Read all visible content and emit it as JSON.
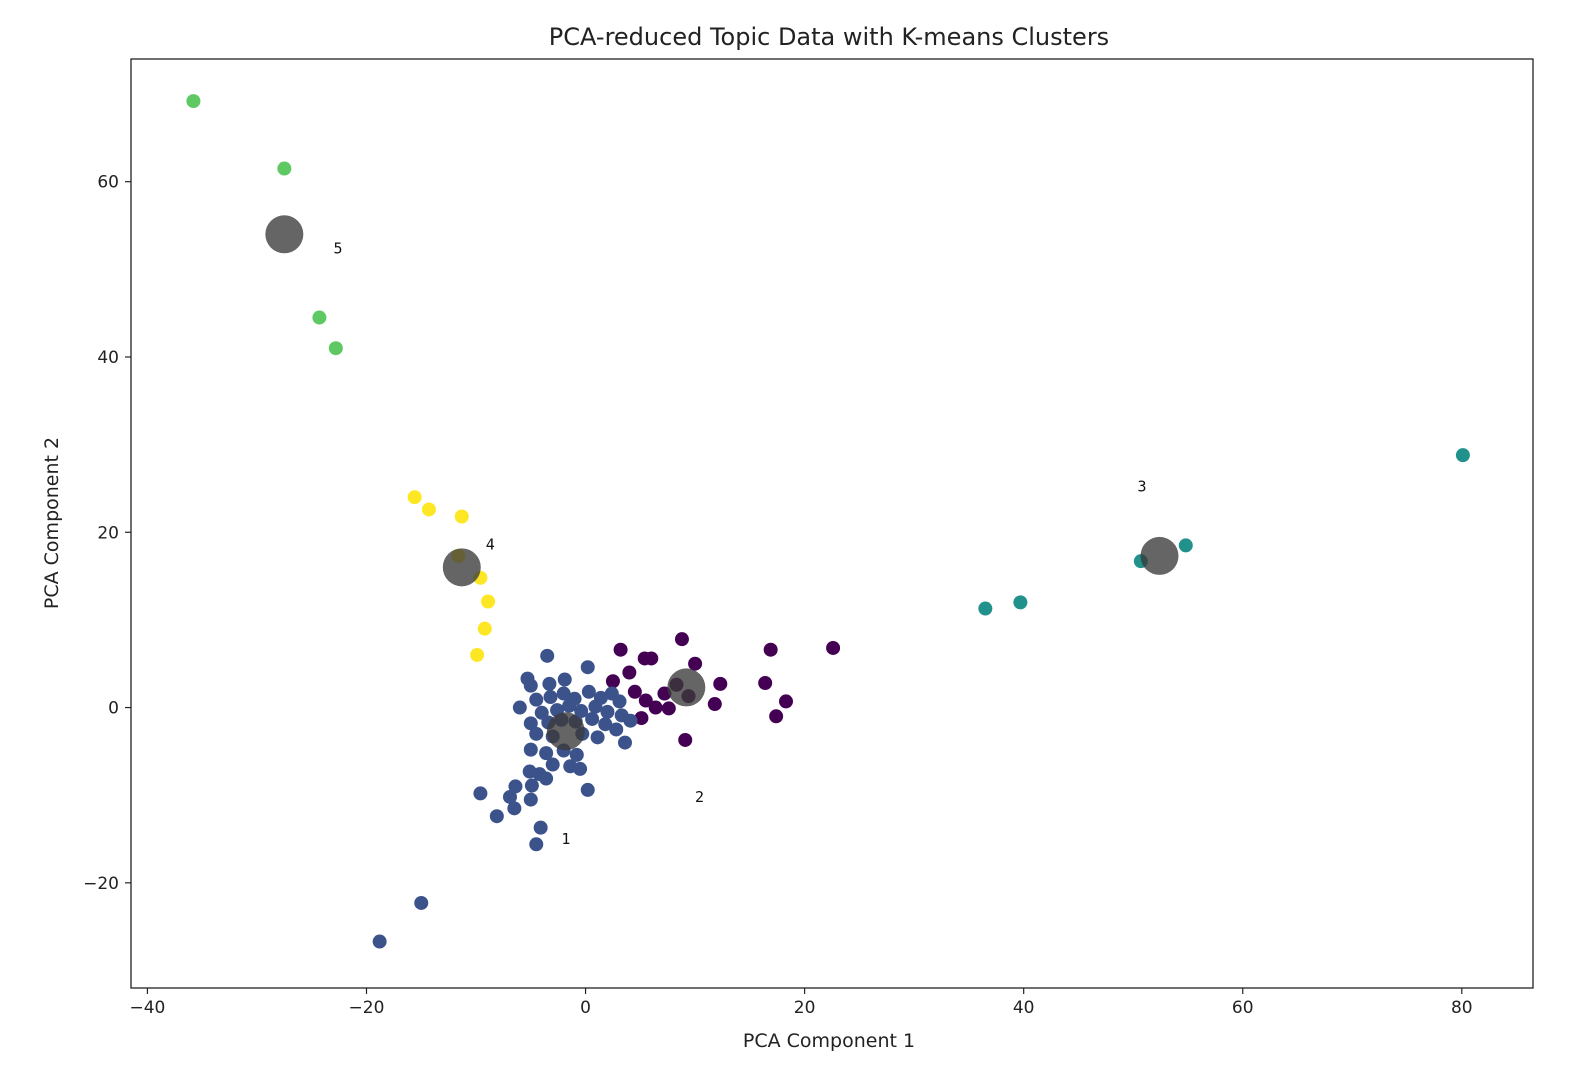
{
  "chart_data": {
    "type": "scatter",
    "title": "PCA-reduced Topic Data with K-means Clusters",
    "xlabel": "PCA Component 1",
    "ylabel": "PCA Component 2",
    "xlim": [
      -41.5,
      86.5
    ],
    "ylim": [
      -32,
      74
    ],
    "xticks": [
      -40,
      -20,
      0,
      20,
      40,
      60,
      80
    ],
    "yticks": [
      -20,
      0,
      20,
      40,
      60
    ],
    "grid": false,
    "legend": "none",
    "colors": {
      "cluster_0": "#440154",
      "cluster_1": "#3b528b",
      "cluster_2": "#21918c",
      "cluster_3": "#5ec962",
      "cluster_4": "#fde725",
      "centroid": "#3a3a3a"
    },
    "points": [
      {
        "cluster": 4,
        "x": -35.8,
        "y": 69.2
      },
      {
        "cluster": 4,
        "x": -27.5,
        "y": 61.5
      },
      {
        "cluster": 4,
        "x": -24.3,
        "y": 44.5
      },
      {
        "cluster": 4,
        "x": -22.8,
        "y": 41.0
      },
      {
        "cluster": 5,
        "x": -15.6,
        "y": 24.0
      },
      {
        "cluster": 5,
        "x": -14.3,
        "y": 22.6
      },
      {
        "cluster": 5,
        "x": -11.3,
        "y": 21.8
      },
      {
        "cluster": 5,
        "x": -11.6,
        "y": 17.3
      },
      {
        "cluster": 5,
        "x": -9.6,
        "y": 14.8
      },
      {
        "cluster": 5,
        "x": -8.9,
        "y": 12.1
      },
      {
        "cluster": 5,
        "x": -9.2,
        "y": 9.0
      },
      {
        "cluster": 5,
        "x": -9.9,
        "y": 6.0
      },
      {
        "cluster": 3,
        "x": 36.5,
        "y": 11.3
      },
      {
        "cluster": 3,
        "x": 39.7,
        "y": 12.0
      },
      {
        "cluster": 3,
        "x": 50.7,
        "y": 16.7
      },
      {
        "cluster": 3,
        "x": 54.8,
        "y": 18.5
      },
      {
        "cluster": 3,
        "x": 80.1,
        "y": 28.8
      },
      {
        "cluster": 1,
        "x": 3.2,
        "y": 6.6
      },
      {
        "cluster": 1,
        "x": 4.0,
        "y": 4.0
      },
      {
        "cluster": 1,
        "x": 5.4,
        "y": 5.6
      },
      {
        "cluster": 1,
        "x": 6.0,
        "y": 5.6
      },
      {
        "cluster": 1,
        "x": 8.8,
        "y": 7.8
      },
      {
        "cluster": 1,
        "x": 10.0,
        "y": 5.0
      },
      {
        "cluster": 1,
        "x": 2.5,
        "y": 3.0
      },
      {
        "cluster": 1,
        "x": 4.5,
        "y": 1.8
      },
      {
        "cluster": 1,
        "x": 5.5,
        "y": 0.8
      },
      {
        "cluster": 1,
        "x": 7.2,
        "y": 1.6
      },
      {
        "cluster": 1,
        "x": 8.3,
        "y": 2.6
      },
      {
        "cluster": 1,
        "x": 9.4,
        "y": 1.3
      },
      {
        "cluster": 1,
        "x": 6.4,
        "y": 0.0
      },
      {
        "cluster": 1,
        "x": 7.6,
        "y": -0.1
      },
      {
        "cluster": 1,
        "x": 5.1,
        "y": -1.2
      },
      {
        "cluster": 1,
        "x": 12.3,
        "y": 2.7
      },
      {
        "cluster": 1,
        "x": 11.8,
        "y": 0.4
      },
      {
        "cluster": 1,
        "x": 16.4,
        "y": 2.8
      },
      {
        "cluster": 1,
        "x": 16.9,
        "y": 6.6
      },
      {
        "cluster": 1,
        "x": 18.3,
        "y": 0.7
      },
      {
        "cluster": 1,
        "x": 17.4,
        "y": -1.0
      },
      {
        "cluster": 1,
        "x": 22.6,
        "y": 6.8
      },
      {
        "cluster": 1,
        "x": 9.1,
        "y": -3.7
      },
      {
        "cluster": 2,
        "x": -3.5,
        "y": 5.9
      },
      {
        "cluster": 2,
        "x": 0.2,
        "y": 4.6
      },
      {
        "cluster": 2,
        "x": -5.3,
        "y": 3.3
      },
      {
        "cluster": 2,
        "x": -5.0,
        "y": 2.5
      },
      {
        "cluster": 2,
        "x": -3.3,
        "y": 2.7
      },
      {
        "cluster": 2,
        "x": -1.9,
        "y": 3.2
      },
      {
        "cluster": 2,
        "x": -6.0,
        "y": 0.0
      },
      {
        "cluster": 2,
        "x": -4.5,
        "y": 0.9
      },
      {
        "cluster": 2,
        "x": -3.2,
        "y": 1.2
      },
      {
        "cluster": 2,
        "x": -2.0,
        "y": 1.6
      },
      {
        "cluster": 2,
        "x": -1.0,
        "y": 1.0
      },
      {
        "cluster": 2,
        "x": 0.3,
        "y": 1.8
      },
      {
        "cluster": 2,
        "x": 1.4,
        "y": 1.1
      },
      {
        "cluster": 2,
        "x": 2.4,
        "y": 1.6
      },
      {
        "cluster": 2,
        "x": 3.1,
        "y": 0.7
      },
      {
        "cluster": 2,
        "x": -4.0,
        "y": -0.6
      },
      {
        "cluster": 2,
        "x": -2.6,
        "y": -0.3
      },
      {
        "cluster": 2,
        "x": -1.5,
        "y": 0.2
      },
      {
        "cluster": 2,
        "x": -0.4,
        "y": -0.4
      },
      {
        "cluster": 2,
        "x": 0.9,
        "y": 0.1
      },
      {
        "cluster": 2,
        "x": 2.0,
        "y": -0.5
      },
      {
        "cluster": 2,
        "x": 3.3,
        "y": -0.9
      },
      {
        "cluster": 2,
        "x": 4.1,
        "y": -1.5
      },
      {
        "cluster": 2,
        "x": -5.0,
        "y": -1.8
      },
      {
        "cluster": 2,
        "x": -3.4,
        "y": -1.7
      },
      {
        "cluster": 2,
        "x": -2.2,
        "y": -1.4
      },
      {
        "cluster": 2,
        "x": -0.9,
        "y": -1.6
      },
      {
        "cluster": 2,
        "x": 0.6,
        "y": -1.3
      },
      {
        "cluster": 2,
        "x": 1.8,
        "y": -1.9
      },
      {
        "cluster": 2,
        "x": 2.8,
        "y": -2.5
      },
      {
        "cluster": 2,
        "x": -4.5,
        "y": -3.0
      },
      {
        "cluster": 2,
        "x": -3.0,
        "y": -3.3
      },
      {
        "cluster": 2,
        "x": -0.3,
        "y": -3.0
      },
      {
        "cluster": 2,
        "x": 1.1,
        "y": -3.4
      },
      {
        "cluster": 2,
        "x": 3.6,
        "y": -4.0
      },
      {
        "cluster": 2,
        "x": -5.0,
        "y": -4.8
      },
      {
        "cluster": 2,
        "x": -3.6,
        "y": -5.2
      },
      {
        "cluster": 2,
        "x": -2.0,
        "y": -4.9
      },
      {
        "cluster": 2,
        "x": -0.8,
        "y": -5.4
      },
      {
        "cluster": 2,
        "x": -3.0,
        "y": -6.5
      },
      {
        "cluster": 2,
        "x": -1.4,
        "y": -6.7
      },
      {
        "cluster": 2,
        "x": -0.5,
        "y": -7.0
      },
      {
        "cluster": 2,
        "x": -5.1,
        "y": -7.3
      },
      {
        "cluster": 2,
        "x": -4.2,
        "y": -7.6
      },
      {
        "cluster": 2,
        "x": -3.6,
        "y": -8.1
      },
      {
        "cluster": 2,
        "x": -6.4,
        "y": -9.0
      },
      {
        "cluster": 2,
        "x": -4.9,
        "y": -8.9
      },
      {
        "cluster": 2,
        "x": 0.2,
        "y": -9.4
      },
      {
        "cluster": 2,
        "x": -9.6,
        "y": -9.8
      },
      {
        "cluster": 2,
        "x": -6.9,
        "y": -10.2
      },
      {
        "cluster": 2,
        "x": -5.0,
        "y": -10.5
      },
      {
        "cluster": 2,
        "x": -6.5,
        "y": -11.5
      },
      {
        "cluster": 2,
        "x": -8.1,
        "y": -12.4
      },
      {
        "cluster": 2,
        "x": -4.1,
        "y": -13.7
      },
      {
        "cluster": 2,
        "x": -4.5,
        "y": -15.6
      },
      {
        "cluster": 2,
        "x": -15.0,
        "y": -22.3
      },
      {
        "cluster": 2,
        "x": -18.8,
        "y": -26.7
      }
    ],
    "centroids": [
      {
        "label": "1",
        "x": -1.8,
        "y": -2.7,
        "label_x": -1.8,
        "label_y": -15.0
      },
      {
        "label": "2",
        "x": 9.2,
        "y": 2.3,
        "label_x": 10.4,
        "label_y": -10.2
      },
      {
        "label": "3",
        "x": 52.4,
        "y": 17.3,
        "label_x": 50.8,
        "label_y": 25.2
      },
      {
        "label": "4",
        "x": -11.3,
        "y": 16.0,
        "label_x": -8.7,
        "label_y": 18.6
      },
      {
        "label": "5",
        "x": -27.5,
        "y": 54.0,
        "label_x": -22.6,
        "label_y": 52.4
      }
    ]
  }
}
